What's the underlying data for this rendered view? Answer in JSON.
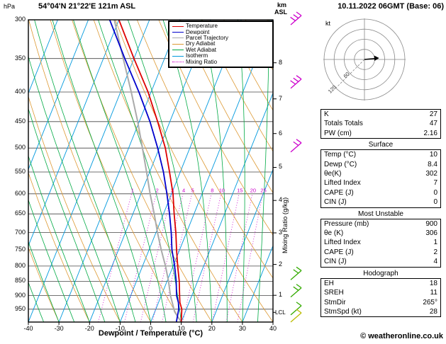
{
  "header": {
    "pressure_unit": "hPa",
    "station": "54°04'N 21°22'E 121m ASL",
    "datetime": "10.11.2022 06GMT (Base: 06)",
    "altitude_unit_line1": "km",
    "altitude_unit_line2": "ASL"
  },
  "legend": {
    "items": [
      {
        "label": "Temperature",
        "color": "#dd0000",
        "dash": ""
      },
      {
        "label": "Dewpoint",
        "color": "#0000cc",
        "dash": ""
      },
      {
        "label": "Parcel Trajectory",
        "color": "#aaaaaa",
        "dash": ""
      },
      {
        "label": "Dry Adiabat",
        "color": "#dd9933",
        "dash": ""
      },
      {
        "label": "Wet Adiabat",
        "color": "#00aa44",
        "dash": ""
      },
      {
        "label": "Isotherm",
        "color": "#0099dd",
        "dash": ""
      },
      {
        "label": "Mixing Ratio",
        "color": "#cc00cc",
        "dash": "dotted"
      }
    ]
  },
  "chart_data": {
    "type": "skewt-log-p",
    "xlabel": "Dewpoint / Temperature (°C)",
    "mixing_ratio_axis_label": "Mixing Ratio (g/kg)",
    "pressure_range": [
      300,
      1000
    ],
    "temp_range": [
      -40,
      40
    ],
    "pressure_ticks": [
      300,
      350,
      400,
      450,
      500,
      550,
      600,
      650,
      700,
      750,
      800,
      850,
      900,
      950
    ],
    "temp_ticks": [
      -40,
      -30,
      -20,
      -10,
      0,
      10,
      20,
      30,
      40
    ],
    "skew_ratio": 0.4,
    "colors": {
      "temperature": "#dd0000",
      "dewpoint": "#0000cc",
      "parcel": "#aaaaaa",
      "dry_adiabat": "#dd9933",
      "wet_adiabat": "#00aa44",
      "isotherm": "#0099dd",
      "mixing_ratio": "#cc00cc",
      "grid": "#444444"
    },
    "isotherms": {
      "min": -80,
      "max": 40,
      "step": 10
    },
    "dry_adiabats_theta_c": {
      "min": -30,
      "max": 120,
      "step": 10
    },
    "wet_adiabats_t0_c": {
      "min": -40,
      "max": 40,
      "step": 5
    },
    "mixing_ratio_lines_g_kg": [
      1,
      2,
      3,
      4,
      5,
      8,
      10,
      15,
      20,
      25
    ],
    "mixing_ratio_label_pressure": 592,
    "km_ticks": [
      {
        "km": 1,
        "p": 899
      },
      {
        "km": 2,
        "p": 795
      },
      {
        "km": 3,
        "p": 701
      },
      {
        "km": 4,
        "p": 616
      },
      {
        "km": 5,
        "p": 540
      },
      {
        "km": 6,
        "p": 472
      },
      {
        "km": 7,
        "p": 411
      },
      {
        "km": 8,
        "p": 356
      }
    ],
    "lcl": {
      "label": "LCL",
      "pressure": 962
    },
    "profiles": {
      "temperature": [
        [
          1000,
          10
        ],
        [
          950,
          8.5
        ],
        [
          925,
          7
        ],
        [
          900,
          6
        ],
        [
          850,
          4
        ],
        [
          800,
          1.5
        ],
        [
          750,
          -1
        ],
        [
          700,
          -3.5
        ],
        [
          650,
          -6.5
        ],
        [
          600,
          -9.5
        ],
        [
          550,
          -13.5
        ],
        [
          500,
          -18
        ],
        [
          450,
          -24
        ],
        [
          400,
          -31
        ],
        [
          350,
          -40
        ],
        [
          300,
          -50
        ]
      ],
      "dewpoint": [
        [
          1000,
          8.4
        ],
        [
          950,
          7.5
        ],
        [
          925,
          6.5
        ],
        [
          900,
          5
        ],
        [
          850,
          3
        ],
        [
          800,
          0.5
        ],
        [
          750,
          -2.5
        ],
        [
          700,
          -5
        ],
        [
          650,
          -8
        ],
        [
          600,
          -11.5
        ],
        [
          550,
          -15.5
        ],
        [
          500,
          -20.5
        ],
        [
          450,
          -26.5
        ],
        [
          400,
          -34
        ],
        [
          350,
          -43
        ],
        [
          300,
          -53
        ]
      ],
      "parcel": [
        [
          1000,
          10
        ],
        [
          960,
          6.5
        ],
        [
          900,
          3
        ],
        [
          850,
          0.5
        ],
        [
          800,
          -2.5
        ],
        [
          750,
          -6
        ],
        [
          700,
          -9.5
        ],
        [
          650,
          -13
        ],
        [
          600,
          -17
        ],
        [
          550,
          -21
        ],
        [
          500,
          -25.5
        ],
        [
          450,
          -30.5
        ],
        [
          400,
          -36.5
        ],
        [
          350,
          -43.5
        ],
        [
          300,
          -51.5
        ]
      ]
    },
    "wind_barbs": [
      {
        "pressure": 306,
        "color": "#cc00cc",
        "ticks": 3
      },
      {
        "pressure": 394,
        "color": "#cc00cc",
        "ticks": 3
      },
      {
        "pressure": 508,
        "color": "#cc00cc",
        "ticks": 2
      },
      {
        "pressure": 845,
        "color": "#33aa00",
        "ticks": 2
      },
      {
        "pressure": 905,
        "color": "#33aa00",
        "ticks": 2
      },
      {
        "pressure": 972,
        "color": "#33aa00",
        "ticks": 1
      },
      {
        "pressure": 1000,
        "color": "#bbbb00",
        "ticks": 1
      }
    ]
  },
  "hodograph": {
    "unit_label": "kt",
    "rings_kt": [
      30,
      60,
      90,
      120
    ],
    "ring_labels": [
      {
        "text": "60",
        "kt": 60
      },
      {
        "text": "120",
        "kt": 120
      }
    ],
    "storm_dir_deg": 265,
    "storm_speed_kt": 28
  },
  "table": {
    "sections": [
      {
        "header": null,
        "rows": [
          [
            "K",
            "27"
          ],
          [
            "Totals Totals",
            "47"
          ],
          [
            "PW (cm)",
            "2.16"
          ]
        ]
      },
      {
        "header": "Surface",
        "rows": [
          [
            "Temp (°C)",
            "10"
          ],
          [
            "Dewp (°C)",
            "8.4"
          ],
          [
            "θe(K)",
            "302"
          ],
          [
            "Lifted Index",
            "7"
          ],
          [
            "CAPE (J)",
            "0"
          ],
          [
            "CIN (J)",
            "0"
          ]
        ]
      },
      {
        "header": "Most Unstable",
        "rows": [
          [
            "Pressure (mb)",
            "900"
          ],
          [
            "θe (K)",
            "306"
          ],
          [
            "Lifted Index",
            "1"
          ],
          [
            "CAPE (J)",
            "2"
          ],
          [
            "CIN (J)",
            "4"
          ]
        ]
      },
      {
        "header": "Hodograph",
        "rows": [
          [
            "EH",
            "18"
          ],
          [
            "SREH",
            "11"
          ],
          [
            "StmDir",
            "265°"
          ],
          [
            "StmSpd (kt)",
            "28"
          ]
        ]
      }
    ]
  },
  "footer": {
    "copyright": "© weatheronline.co.uk"
  }
}
